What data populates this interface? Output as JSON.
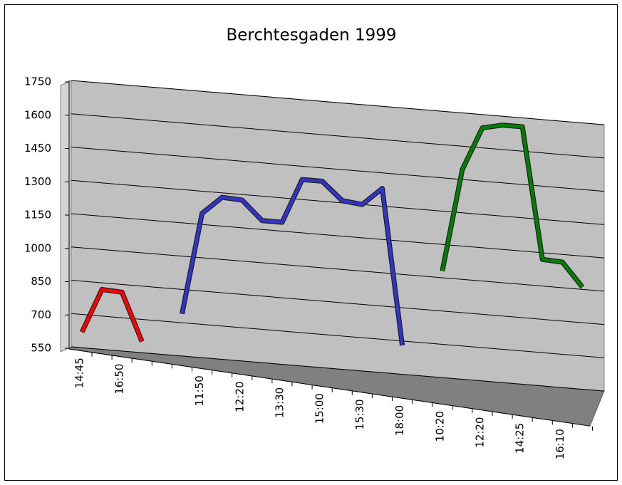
{
  "chart_data": {
    "type": "line3d",
    "title": "Berchtesgaden 1999",
    "categories": [
      "14:45",
      null,
      "16:50",
      null,
      null,
      null,
      "11:50",
      null,
      "12:20",
      null,
      "13:30",
      null,
      "15:00",
      null,
      "15:30",
      null,
      "18:00",
      null,
      "10:20",
      null,
      "12:20",
      null,
      "14:25",
      null,
      "16:10",
      null
    ],
    "series": [
      {
        "color": "#ff0000",
        "values": [
          620,
          820,
          815,
          600,
          null,
          null,
          null,
          null,
          null,
          null,
          null,
          null,
          null,
          null,
          null,
          null,
          null,
          null,
          null,
          null,
          null,
          null,
          null,
          null,
          null,
          null
        ]
      },
      {
        "color": "#3333cc",
        "values": [
          null,
          null,
          null,
          null,
          null,
          740,
          1200,
          1280,
          1275,
          1190,
          1190,
          1390,
          1390,
          1310,
          1300,
          1380,
          680,
          null,
          null,
          null,
          null,
          null,
          null,
          null,
          null,
          null
        ]
      },
      {
        "color": "#008000",
        "values": [
          null,
          null,
          null,
          null,
          null,
          null,
          null,
          null,
          null,
          null,
          null,
          null,
          null,
          null,
          null,
          null,
          null,
          null,
          1030,
          1495,
          1690,
          1710,
          1710,
          1120,
          1115,
          1010
        ]
      }
    ],
    "ylim": [
      550,
      1750
    ],
    "yticks": [
      550,
      700,
      850,
      1000,
      1150,
      1300,
      1450,
      1600,
      1750
    ],
    "grid": true
  }
}
